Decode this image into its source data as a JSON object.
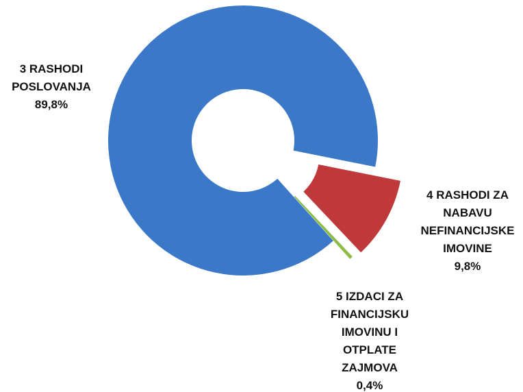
{
  "chart_data": {
    "type": "pie",
    "categories": [
      "3 RASHODI POSLOVANJA",
      "4 RASHODI ZA NABAVU NEFINANCIJSKE IMOVINE",
      "5 IZDACI ZA FINANCIJSKU IMOVINU I OTPLATE ZAJMOVA"
    ],
    "values": [
      89.8,
      9.8,
      0.4
    ],
    "value_labels": [
      "89,8%",
      "9,8%",
      "0,4%"
    ],
    "colors": [
      "#3b78c8",
      "#c0393a",
      "#8cbb46"
    ],
    "donut": true
  }
}
